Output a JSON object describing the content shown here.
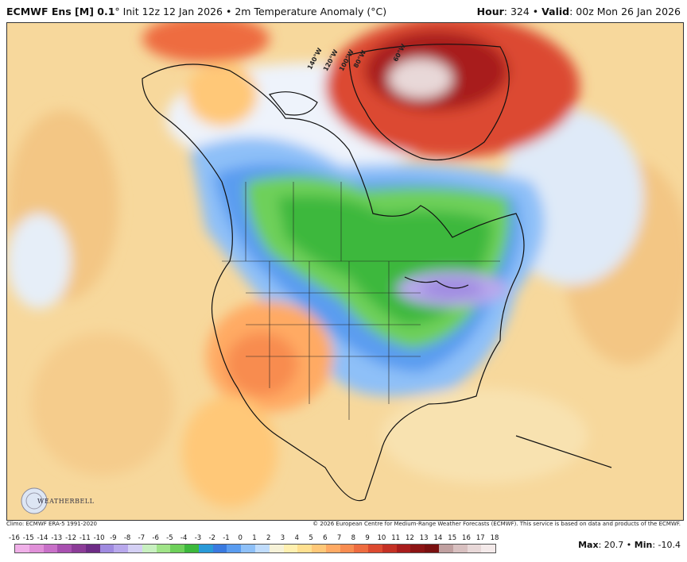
{
  "header": {
    "model": "ECMWF Ens [M] 0.1",
    "degree_mark": "°",
    "init": "Init 12z 12 Jan 2026",
    "sep": "•",
    "field": "2m Temperature Anomaly (°C)",
    "hour_label": "Hour",
    "hour_value": ": 324",
    "valid_label": "Valid",
    "valid_value": ": 00z Mon 26 Jan 2026"
  },
  "map": {
    "longitude_labels": [
      "140°W",
      "120°W",
      "100°W",
      "80°W",
      "60°W"
    ],
    "logo_text": "WEATHERBELL"
  },
  "footer": {
    "climo": "Climo: ECMWF ERA-5 1991-2020",
    "copyright": "© 2026 European Centre for Medium-Range Weather Forecasts (ECMWF). This service is based on data and products of the ECMWF.",
    "max_label": "Max",
    "max_value": ": 20.7",
    "min_label": "Min",
    "min_value": ": -10.4",
    "sep": "•"
  },
  "scale": {
    "labels": [
      "-16",
      "-15",
      "-14",
      "-13",
      "-12",
      "-11",
      "-10",
      "-9",
      "-8",
      "-7",
      "-6",
      "-5",
      "-4",
      "-3",
      "-2",
      "-1",
      "0",
      "1",
      "2",
      "3",
      "4",
      "5",
      "6",
      "7",
      "8",
      "9",
      "10",
      "11",
      "12",
      "13",
      "14",
      "15",
      "16",
      "17",
      "18"
    ],
    "colors": [
      "#f0b0e8",
      "#e090d8",
      "#c870c8",
      "#a850b0",
      "#8c3c98",
      "#6e2c86",
      "#9f8ae0",
      "#b8a8ec",
      "#d4d0f4",
      "#c8f0c0",
      "#a0e488",
      "#6ed05a",
      "#3cb83c",
      "#2a9ad8",
      "#3a7ae0",
      "#5a9cf0",
      "#8ec0f8",
      "#c0dcfc",
      "#f6f2d8",
      "#fff0b0",
      "#ffe090",
      "#ffc878",
      "#ffaa64",
      "#f88c50",
      "#ee6c40",
      "#dc4a30",
      "#c43024",
      "#a81c1c",
      "#8c1414",
      "#7a1010",
      "#c0a0a0",
      "#d8c0c0",
      "#e8d8d8",
      "#f4eaea"
    ]
  }
}
